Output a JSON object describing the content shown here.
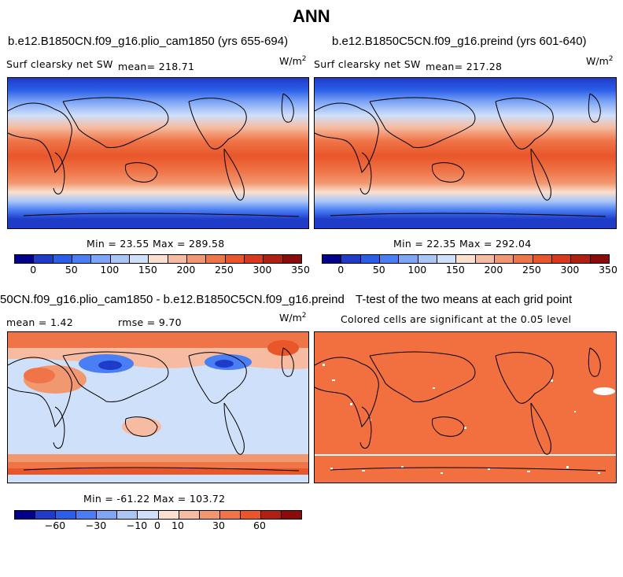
{
  "figure_title": "ANN",
  "colors": {
    "abs": [
      "#00008b",
      "#1e3cc8",
      "#2a5ee8",
      "#4a7ef4",
      "#7ea6f6",
      "#a9c6f7",
      "#cfe0fa",
      "#fbe0d0",
      "#f6bba0",
      "#f29870",
      "#ef7448",
      "#e8562a",
      "#d8381c",
      "#b02010",
      "#8b0a0a"
    ],
    "diff": [
      "#00008b",
      "#1e3cc8",
      "#2a5ee8",
      "#4a7ef4",
      "#7ea6f6",
      "#a9c6f7",
      "#cfe0fa",
      "#fbe0d0",
      "#f6bba0",
      "#f29870",
      "#ef7448",
      "#e8562a",
      "#b02010",
      "#8b0a0a"
    ],
    "land": "#000000",
    "ttest": "#f26f3f"
  },
  "panels": {
    "p1": {
      "case": "b.e12.B1850CN.f09_g16.plio_cam1850 (yrs 655-694)",
      "var": "Surf clearsky net SW",
      "mean": "mean= 218.71",
      "units": "W/m",
      "units_sup": "2",
      "minmax": "Min =  23.55 Max = 289.58"
    },
    "p2": {
      "case": "b.e12.B1850C5CN.f09_g16.preind (yrs 601-640)",
      "var": "Surf clearsky net SW",
      "mean": "mean= 217.28",
      "units": "W/m",
      "units_sup": "2",
      "minmax": "Min =  22.35 Max = 292.04"
    },
    "p3": {
      "case": "50CN.f09_g16.plio_cam1850 - b.e12.B1850C5CN.f09_g16.preind",
      "mean": "mean =     1.42",
      "rmse": "rmse =     9.70",
      "units": "W/m",
      "units_sup": "2",
      "minmax": "Min = -61.22 Max = 103.72"
    },
    "p4": {
      "case": "T-test of the two means at each grid point",
      "subtitle": "Colored cells are significant at the 0.05 level"
    }
  },
  "colorbars": {
    "abs_ticks": [
      "0",
      "50",
      "100",
      "150",
      "200",
      "250",
      "300",
      "350"
    ],
    "diff_ticks": [
      "−60",
      "−30",
      "−10",
      "0",
      "10",
      "30",
      "60"
    ]
  }
}
